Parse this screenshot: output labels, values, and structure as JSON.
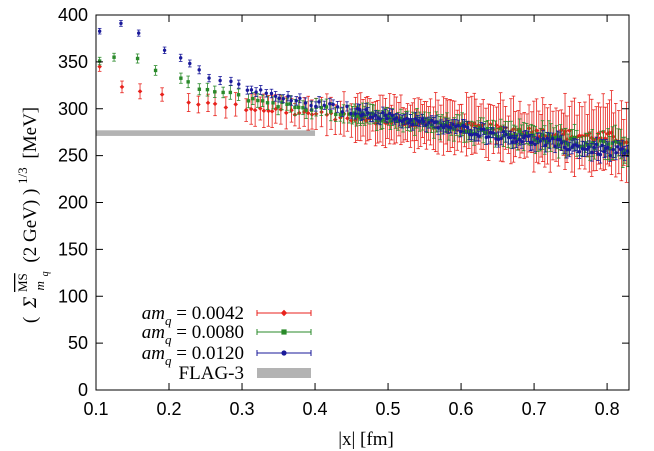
{
  "chart_data": {
    "type": "scatter",
    "title": "",
    "xlabel": "|x| [fm]",
    "ylabel": "( Σ^{MS}_{m_q} (2 GeV) )^{1/3} [MeV]",
    "ylabel_parts": {
      "open": "(",
      "sigma": "Σ",
      "ms": "MS",
      "sub": "m",
      "subsub": "q",
      "middle": "(2 GeV) )",
      "power": "1/3",
      "unit": "[MeV]"
    },
    "xlim": [
      0.1,
      0.83
    ],
    "ylim": [
      0,
      400
    ],
    "x_ticks": [
      "0.1",
      "0.2",
      "0.3",
      "0.4",
      "0.5",
      "0.6",
      "0.7",
      "0.8"
    ],
    "y_ticks": [
      "0",
      "50",
      "100",
      "150",
      "200",
      "250",
      "300",
      "350",
      "400"
    ],
    "grid": false,
    "legend_position": "bottom-left",
    "series": [
      {
        "legend": "am_q = 0.0042",
        "legend_parts": {
          "a": "am",
          "sub": "q",
          "eq": " = 0.0042"
        },
        "color": "#e8221c",
        "marker": "diamond",
        "x_start": 0.105,
        "x_end": 0.83,
        "trend": [
          [
            0.105,
            345
          ],
          [
            0.14,
            322
          ],
          [
            0.17,
            318
          ],
          [
            0.25,
            305
          ],
          [
            0.35,
            298
          ],
          [
            0.45,
            290
          ],
          [
            0.55,
            284
          ],
          [
            0.65,
            278
          ],
          [
            0.75,
            272
          ],
          [
            0.83,
            268
          ]
        ],
        "err_start": 5,
        "err_end": 35
      },
      {
        "legend": "am_q = 0.0080",
        "legend_parts": {
          "a": "am",
          "sub": "q",
          "eq": " = 0.0080"
        },
        "color": "#2a8a2a",
        "marker": "square",
        "x_start": 0.105,
        "x_end": 0.83,
        "trend": [
          [
            0.105,
            350
          ],
          [
            0.14,
            360
          ],
          [
            0.17,
            345
          ],
          [
            0.25,
            320
          ],
          [
            0.35,
            305
          ],
          [
            0.45,
            295
          ],
          [
            0.55,
            285
          ],
          [
            0.65,
            275
          ],
          [
            0.75,
            265
          ],
          [
            0.83,
            258
          ]
        ],
        "err_start": 4,
        "err_end": 14
      },
      {
        "legend": "am_q = 0.0120",
        "legend_parts": {
          "a": "am",
          "sub": "q",
          "eq": " = 0.0120"
        },
        "color": "#1a1a9a",
        "marker": "circle",
        "x_start": 0.105,
        "x_end": 0.83,
        "trend": [
          [
            0.105,
            382
          ],
          [
            0.14,
            393
          ],
          [
            0.17,
            375
          ],
          [
            0.25,
            335
          ],
          [
            0.35,
            312
          ],
          [
            0.45,
            298
          ],
          [
            0.55,
            285
          ],
          [
            0.65,
            272
          ],
          [
            0.75,
            260
          ],
          [
            0.83,
            252
          ]
        ],
        "err_start": 3,
        "err_end": 8
      }
    ],
    "band": {
      "legend": "FLAG-3",
      "y_center": 274,
      "half_width": 3,
      "x_start": 0.1,
      "x_end": 0.4,
      "color": "#b3b3b3"
    }
  }
}
